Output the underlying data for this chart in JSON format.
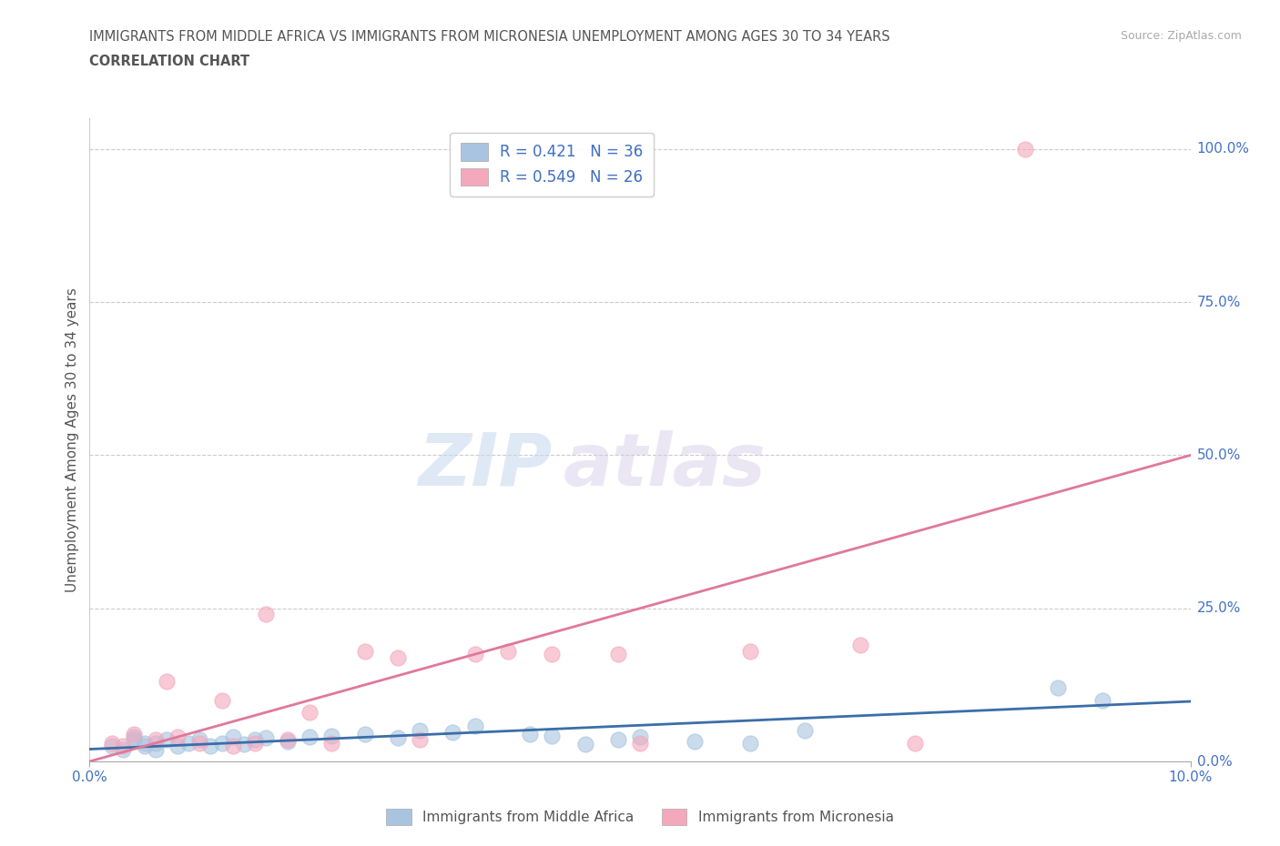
{
  "title_line1": "IMMIGRANTS FROM MIDDLE AFRICA VS IMMIGRANTS FROM MICRONESIA UNEMPLOYMENT AMONG AGES 30 TO 34 YEARS",
  "title_line2": "CORRELATION CHART",
  "source": "Source: ZipAtlas.com",
  "ylabel": "Unemployment Among Ages 30 to 34 years",
  "xlim": [
    0.0,
    0.1
  ],
  "ylim": [
    0.0,
    1.05
  ],
  "yticks": [
    0.0,
    0.25,
    0.5,
    0.75,
    1.0
  ],
  "ytick_labels": [
    "0.0%",
    "25.0%",
    "50.0%",
    "75.0%",
    "100.0%"
  ],
  "xtick_labels": [
    "0.0%",
    "10.0%"
  ],
  "blue_R": 0.421,
  "blue_N": 36,
  "pink_R": 0.549,
  "pink_N": 26,
  "blue_color": "#a8c4e0",
  "pink_color": "#f4a8bc",
  "blue_line_color": "#3a6ea8",
  "pink_line_color": "#e0789a",
  "watermark_zip": "ZIP",
  "watermark_atlas": "atlas",
  "legend_label_blue": "Immigrants from Middle Africa",
  "legend_label_pink": "Immigrants from Micronesia",
  "blue_scatter_x": [
    0.002,
    0.003,
    0.004,
    0.004,
    0.005,
    0.005,
    0.006,
    0.006,
    0.007,
    0.008,
    0.009,
    0.01,
    0.011,
    0.012,
    0.013,
    0.014,
    0.015,
    0.016,
    0.018,
    0.02,
    0.022,
    0.025,
    0.028,
    0.03,
    0.033,
    0.035,
    0.04,
    0.042,
    0.045,
    0.048,
    0.05,
    0.055,
    0.06,
    0.065,
    0.088,
    0.092
  ],
  "blue_scatter_y": [
    0.025,
    0.02,
    0.035,
    0.04,
    0.025,
    0.03,
    0.02,
    0.03,
    0.035,
    0.025,
    0.03,
    0.035,
    0.025,
    0.03,
    0.04,
    0.028,
    0.035,
    0.038,
    0.032,
    0.04,
    0.042,
    0.045,
    0.038,
    0.05,
    0.048,
    0.058,
    0.045,
    0.042,
    0.028,
    0.035,
    0.04,
    0.032,
    0.03,
    0.05,
    0.12,
    0.1
  ],
  "pink_scatter_x": [
    0.002,
    0.003,
    0.004,
    0.006,
    0.007,
    0.008,
    0.01,
    0.012,
    0.013,
    0.015,
    0.016,
    0.018,
    0.02,
    0.022,
    0.025,
    0.028,
    0.03,
    0.035,
    0.038,
    0.042,
    0.048,
    0.05,
    0.06,
    0.07,
    0.075,
    0.085
  ],
  "pink_scatter_y": [
    0.03,
    0.025,
    0.045,
    0.035,
    0.13,
    0.04,
    0.03,
    0.1,
    0.025,
    0.03,
    0.24,
    0.035,
    0.08,
    0.03,
    0.18,
    0.17,
    0.035,
    0.175,
    0.18,
    0.175,
    0.175,
    0.03,
    0.18,
    0.19,
    0.03,
    1.0
  ],
  "blue_trend_x": [
    0.0,
    0.1
  ],
  "blue_trend_y": [
    0.02,
    0.098
  ],
  "pink_trend_x": [
    0.0,
    0.1
  ],
  "pink_trend_y": [
    0.0,
    0.5
  ]
}
